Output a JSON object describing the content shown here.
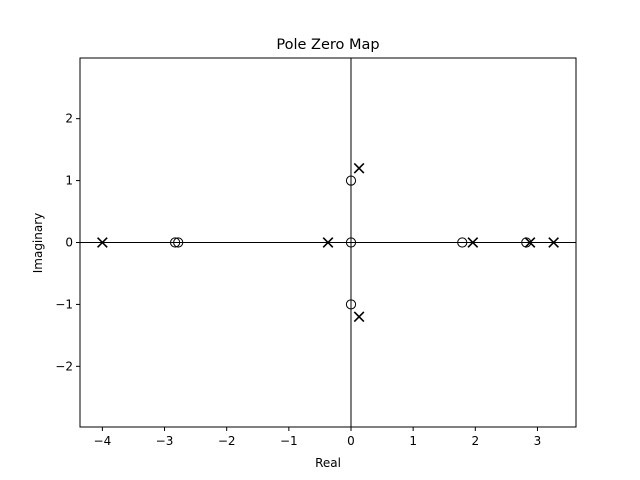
{
  "chart_data": {
    "type": "scatter",
    "title": "Pole Zero Map",
    "xlabel": "Real",
    "ylabel": "Imaginary",
    "xlim": [
      -4.36,
      3.62
    ],
    "ylim": [
      -2.98,
      2.98
    ],
    "xticks": [
      -4,
      -3,
      -2,
      -1,
      0,
      1,
      2,
      3
    ],
    "xtick_labels": [
      "−4",
      "−3",
      "−2",
      "−1",
      "0",
      "1",
      "2",
      "3"
    ],
    "yticks": [
      -2,
      -1,
      0,
      1,
      2
    ],
    "ytick_labels": [
      "−2",
      "−1",
      "0",
      "1",
      "2"
    ],
    "grid": false,
    "reference_lines": {
      "x": 0,
      "y": 0
    },
    "series": [
      {
        "marker": "x",
        "points": [
          {
            "x": -4.0,
            "y": 0
          },
          {
            "x": -0.37,
            "y": 0
          },
          {
            "x": 0.13,
            "y": 1.2
          },
          {
            "x": 0.13,
            "y": -1.2
          },
          {
            "x": 1.96,
            "y": 0
          },
          {
            "x": 2.88,
            "y": 0
          },
          {
            "x": 3.26,
            "y": 0
          }
        ]
      },
      {
        "marker": "o",
        "points": [
          {
            "x": -2.83,
            "y": 0
          },
          {
            "x": -2.78,
            "y": 0
          },
          {
            "x": 0.0,
            "y": 1.0
          },
          {
            "x": 0.0,
            "y": 0
          },
          {
            "x": 0.0,
            "y": -1.0
          },
          {
            "x": 1.79,
            "y": 0
          },
          {
            "x": 2.82,
            "y": 0
          }
        ]
      }
    ]
  }
}
